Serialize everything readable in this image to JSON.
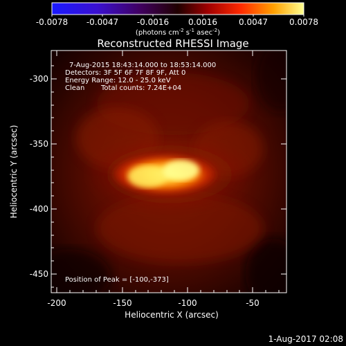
{
  "colorbar": {
    "ticks": [
      "-0.0078",
      "-0.0047",
      "-0.0016",
      "0.0016",
      "0.0047",
      "0.0078"
    ],
    "unit_prefix": "(photons cm",
    "unit_exp1": "-2",
    "unit_mid": " s",
    "unit_exp2": "-1",
    "unit_mid2": " asec",
    "unit_exp3": "-2",
    "unit_suffix": ")"
  },
  "title": "Reconstructed RHESSI Image",
  "info": {
    "line1": "7-Aug-2015 18:43:14.000 to 18:53:14.000",
    "line2": "Detectors: 3F 5F 6F 7F 8F 9F, Att 0",
    "line3": "Energy Range: 12.0 - 25.0 keV",
    "line4_left": "Clean",
    "line4_right": "Total counts: 7.24E+04"
  },
  "peak_text": "Position of Peak = [-100,-373]",
  "axes": {
    "xlabel": "Heliocentric X (arcsec)",
    "ylabel": "Heliocentric Y (arcsec)",
    "x_ticks": [
      "-200",
      "-150",
      "-100",
      "-50"
    ],
    "y_ticks": [
      "-300",
      "-350",
      "-400",
      "-450"
    ]
  },
  "footer_date": "1-Aug-2017 02:08",
  "colors": {
    "background": "#000000",
    "colormap": [
      "#1a1aff",
      "#3a00d9",
      "#3a0060",
      "#2a0000",
      "#b00000",
      "#ff2000",
      "#ff9800",
      "#ffff80"
    ],
    "image_dark": "#2a0400",
    "image_mid": "#7a1000",
    "image_hot": "#ffff90"
  },
  "peak": {
    "x": -100,
    "y": -373
  }
}
